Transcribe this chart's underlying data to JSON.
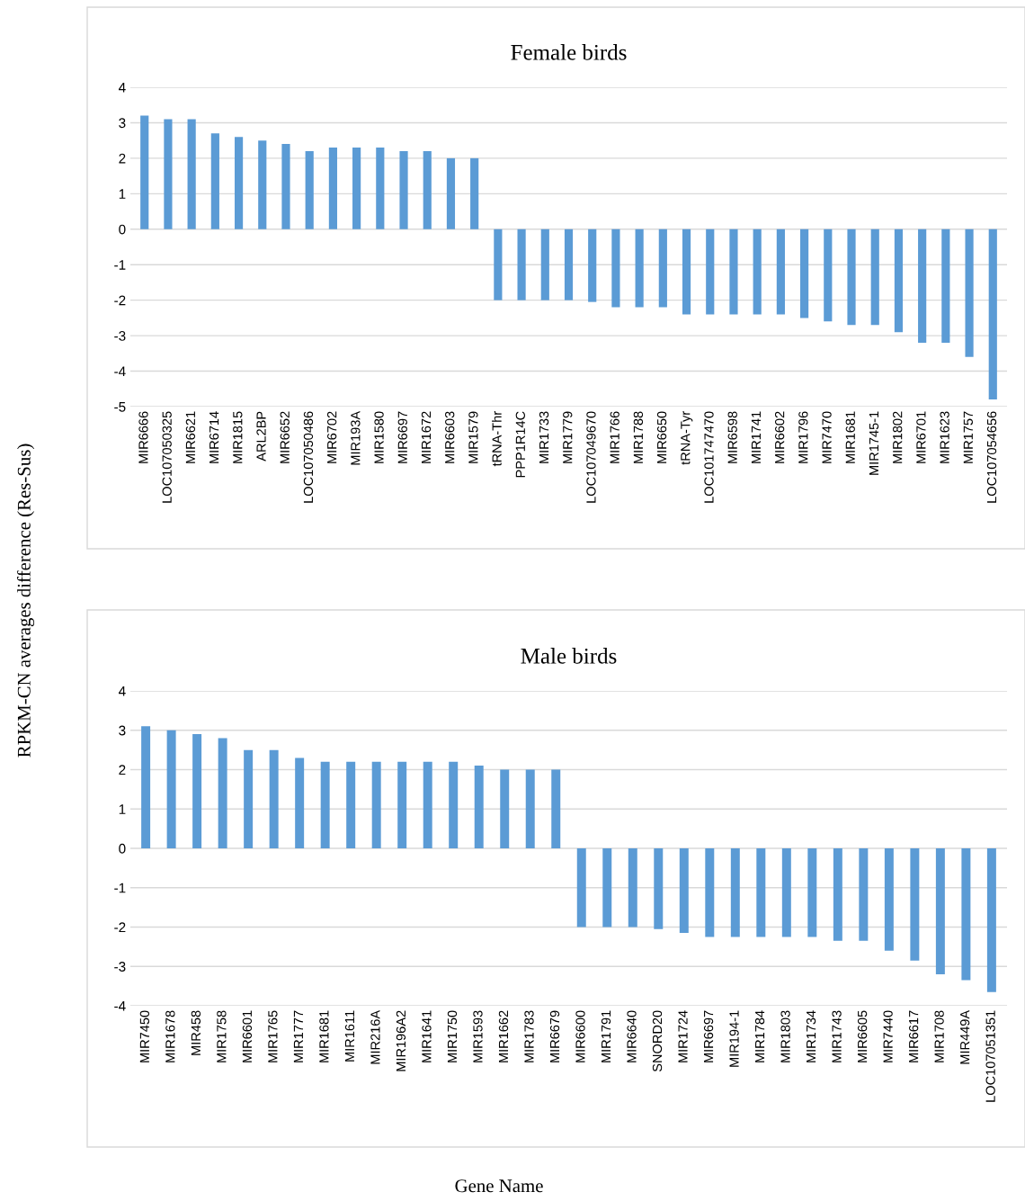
{
  "chart_data": [
    {
      "type": "bar",
      "title": "Female birds",
      "ylabel": "RPKM-CN averages difference (Res-Sus)",
      "categories": [
        "MIR6666",
        "LOC107050325",
        "MIR6621",
        "MIR6714",
        "MIR1815",
        "ARL2BP",
        "MIR6652",
        "LOC107050486",
        "MIR6702",
        "MIR193A",
        "MIR1580",
        "MIR6697",
        "MIR1672",
        "MIR6603",
        "MIR1579",
        "tRNA-Thr",
        "PPP1R14C",
        "MIR1733",
        "MIR1779",
        "LOC107049670",
        "MIR1766",
        "MIR1788",
        "MIR6650",
        "tRNA-Tyr",
        "LOC101747470",
        "MIR6598",
        "MIR1741",
        "MIR6602",
        "MIR1796",
        "MIR7470",
        "MIR1681",
        "MIR1745-1",
        "MIR1802",
        "MIR6701",
        "MIR1623",
        "MIR1757",
        "LOC107054656"
      ],
      "values": [
        3.2,
        3.1,
        3.1,
        2.7,
        2.6,
        2.5,
        2.4,
        2.2,
        2.3,
        2.3,
        2.3,
        2.2,
        2.2,
        2.0,
        2.0,
        -2.0,
        -2.0,
        -2.0,
        -2.0,
        -2.05,
        -2.2,
        -2.2,
        -2.2,
        -2.4,
        -2.4,
        -2.4,
        -2.4,
        -2.4,
        -2.5,
        -2.6,
        -2.7,
        -2.7,
        -2.9,
        -3.2,
        -3.2,
        -3.6,
        -4.8
      ],
      "color": "#5b9bd5",
      "ylim": [
        -5,
        4
      ],
      "yticks": [
        -5,
        -4,
        -3,
        -2,
        -1,
        0,
        1,
        2,
        3,
        4
      ],
      "grid": "y"
    },
    {
      "type": "bar",
      "title": "Male birds",
      "xlabel": "Gene Name",
      "categories": [
        "MIR7450",
        "MIR1678",
        "MIR458",
        "MIR1758",
        "MIR6601",
        "MIR1765",
        "MIR1777",
        "MIR1681",
        "MIR1611",
        "MIR216A",
        "MIR196A2",
        "MIR1641",
        "MIR1750",
        "MIR1593",
        "MIR1662",
        "MIR1783",
        "MIR6679",
        "MIR6600",
        "MIR1791",
        "MIR6640",
        "SNORD20",
        "MIR1724",
        "MIR6697",
        "MIR194-1",
        "MIR1784",
        "MIR1803",
        "MIR1734",
        "MIR1743",
        "MIR6605",
        "MIR7440",
        "MIR6617",
        "MIR1708",
        "MIR449A",
        "LOC107051351"
      ],
      "values": [
        3.1,
        3.0,
        2.9,
        2.8,
        2.5,
        2.5,
        2.3,
        2.2,
        2.2,
        2.2,
        2.2,
        2.2,
        2.2,
        2.1,
        2.0,
        2.0,
        2.0,
        -2.0,
        -2.0,
        -2.0,
        -2.05,
        -2.15,
        -2.25,
        -2.25,
        -2.25,
        -2.25,
        -2.25,
        -2.35,
        -2.35,
        -2.6,
        -2.85,
        -3.2,
        -3.35,
        -3.65
      ],
      "color": "#5b9bd5",
      "ylim": [
        -4,
        4
      ],
      "yticks": [
        -4,
        -3,
        -2,
        -1,
        0,
        1,
        2,
        3,
        4
      ],
      "grid": "y"
    }
  ]
}
